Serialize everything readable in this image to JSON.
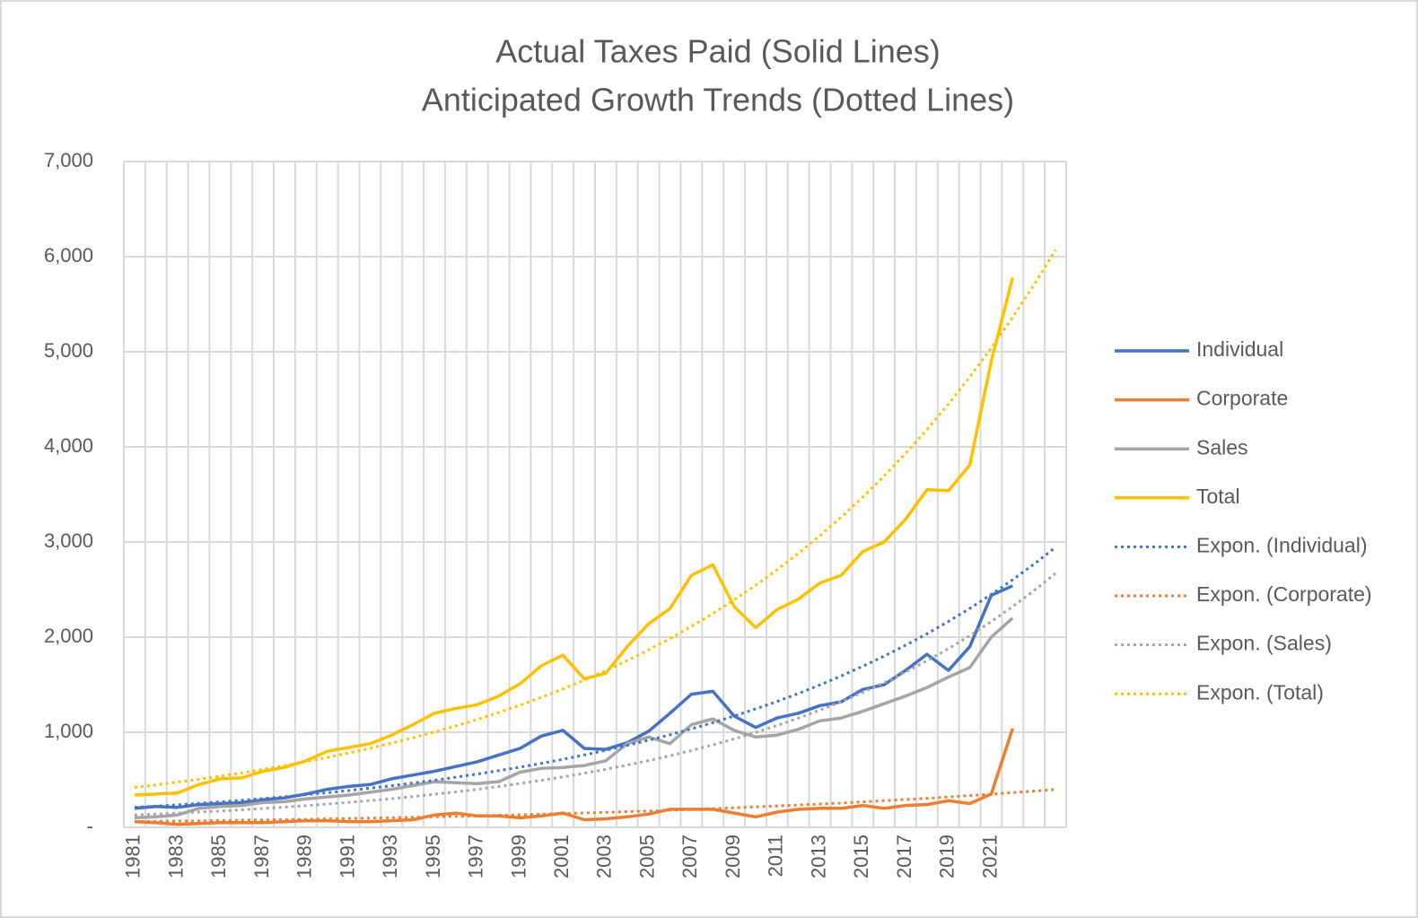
{
  "chart_data": {
    "type": "line",
    "title": "Actual Taxes Paid (Solid Lines)",
    "subtitle": "Anticipated Growth Trends (Dotted Lines)",
    "categories": [
      "1981",
      null,
      "1983",
      null,
      "1985",
      null,
      "1987",
      null,
      "1989",
      null,
      "1991",
      null,
      "1993",
      null,
      "1995",
      null,
      "1997",
      null,
      "1999",
      null,
      "2001",
      null,
      "2003",
      null,
      "2005",
      null,
      "2007",
      null,
      "2009",
      null,
      "2011",
      null,
      "2013",
      null,
      "2015",
      null,
      "2017",
      null,
      "2019",
      null,
      "2021",
      null,
      null,
      null
    ],
    "ylim": [
      0,
      7000
    ],
    "yticks": [
      {
        "value": 0,
        "label": "-"
      },
      {
        "value": 1000,
        "label": "1,000"
      },
      {
        "value": 2000,
        "label": "2,000"
      },
      {
        "value": 3000,
        "label": "3,000"
      },
      {
        "value": 4000,
        "label": "4,000"
      },
      {
        "value": 5000,
        "label": "5,000"
      },
      {
        "value": 6000,
        "label": "6,000"
      },
      {
        "value": 7000,
        "label": "7,000"
      }
    ],
    "grid": true,
    "legend": "right",
    "series": [
      {
        "name": "Individual",
        "color": "#4472c4",
        "style": "solid",
        "values": [
          200,
          220,
          210,
          240,
          250,
          260,
          290,
          310,
          350,
          400,
          430,
          450,
          510,
          550,
          590,
          640,
          690,
          760,
          830,
          960,
          1020,
          830,
          820,
          890,
          1010,
          1200,
          1400,
          1430,
          1170,
          1050,
          1150,
          1200,
          1280,
          1320,
          1450,
          1500,
          1650,
          1820,
          1650,
          1900,
          2440,
          2540,
          null,
          null
        ]
      },
      {
        "name": "Corporate",
        "color": "#ed7d31",
        "style": "solid",
        "values": [
          60,
          50,
          30,
          40,
          50,
          50,
          50,
          60,
          70,
          70,
          60,
          60,
          70,
          80,
          130,
          150,
          120,
          120,
          100,
          120,
          150,
          80,
          90,
          110,
          140,
          190,
          190,
          190,
          150,
          110,
          160,
          190,
          200,
          200,
          230,
          200,
          230,
          240,
          280,
          250,
          350,
          1040,
          null,
          null
        ]
      },
      {
        "name": "Sales",
        "color": "#a5a5a5",
        "style": "solid",
        "values": [
          100,
          110,
          130,
          200,
          220,
          230,
          260,
          270,
          300,
          320,
          340,
          370,
          400,
          440,
          480,
          470,
          460,
          480,
          580,
          620,
          630,
          650,
          700,
          880,
          950,
          880,
          1080,
          1140,
          1020,
          950,
          970,
          1030,
          1120,
          1150,
          1220,
          1300,
          1380,
          1470,
          1580,
          1680,
          2000,
          2200,
          null,
          null
        ]
      },
      {
        "name": "Total",
        "color": "#ffc000",
        "style": "solid",
        "values": [
          340,
          350,
          360,
          450,
          510,
          520,
          590,
          630,
          700,
          800,
          840,
          880,
          970,
          1080,
          1200,
          1250,
          1290,
          1380,
          1510,
          1700,
          1810,
          1560,
          1620,
          1900,
          2140,
          2300,
          2650,
          2760,
          2320,
          2100,
          2290,
          2400,
          2570,
          2650,
          2900,
          3000,
          3240,
          3550,
          3540,
          3810,
          4900,
          5780,
          null,
          null
        ]
      },
      {
        "name": "Expon. (Individual)",
        "color": "#4472c4",
        "style": "dotted",
        "values": [
          210,
          223,
          237,
          252,
          268,
          285,
          303,
          322,
          343,
          364,
          387,
          412,
          438,
          466,
          495,
          527,
          560,
          596,
          633,
          673,
          716,
          761,
          810,
          861,
          916,
          974,
          1035,
          1101,
          1171,
          1245,
          1324,
          1408,
          1497,
          1592,
          1693,
          1800,
          1914,
          2036,
          2165,
          2302,
          2448,
          2603,
          2768,
          2944
        ]
      },
      {
        "name": "Expon. (Corporate)",
        "color": "#ed7d31",
        "style": "dotted",
        "values": [
          60,
          63,
          66,
          68,
          72,
          75,
          78,
          82,
          85,
          89,
          93,
          97,
          102,
          106,
          111,
          116,
          121,
          127,
          132,
          138,
          145,
          151,
          158,
          165,
          172,
          180,
          188,
          197,
          206,
          215,
          225,
          235,
          245,
          256,
          268,
          280,
          293,
          306,
          320,
          334,
          349,
          365,
          381,
          398
        ]
      },
      {
        "name": "Expon. (Sales)",
        "color": "#a5a5a5",
        "style": "dotted",
        "values": [
          130,
          139,
          150,
          161,
          172,
          185,
          198,
          213,
          228,
          245,
          263,
          282,
          302,
          324,
          348,
          373,
          400,
          430,
          461,
          494,
          530,
          569,
          610,
          655,
          702,
          753,
          808,
          867,
          930,
          998,
          1071,
          1149,
          1232,
          1322,
          1418,
          1522,
          1633,
          1752,
          1879,
          2016,
          2163,
          2321,
          2490,
          2671
        ]
      },
      {
        "name": "Expon. (Total)",
        "color": "#ffc000",
        "style": "dotted",
        "values": [
          420,
          447,
          476,
          506,
          539,
          573,
          610,
          649,
          691,
          735,
          782,
          832,
          886,
          942,
          1003,
          1067,
          1135,
          1208,
          1285,
          1368,
          1455,
          1549,
          1648,
          1753,
          1866,
          1985,
          2112,
          2248,
          2392,
          2545,
          2708,
          2882,
          3066,
          3263,
          3472,
          3694,
          3931,
          4183,
          4451,
          4736,
          5040,
          5362,
          5706,
          6071
        ]
      }
    ]
  }
}
